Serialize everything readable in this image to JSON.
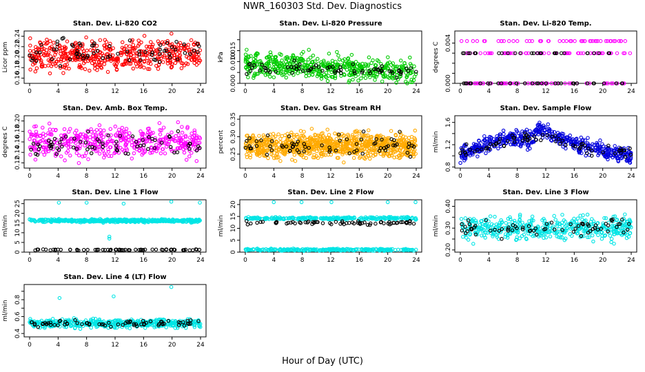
{
  "figure": {
    "title": "NWR_160303  Std. Dev. Diagnostics",
    "xlabel": "Hour of Day (UTC)"
  },
  "chart_data": [
    {
      "type": "scatter",
      "title": "Stan. Dev. Li-820 CO2",
      "ylabel": "Licor ppm",
      "xlim": [
        0,
        24
      ],
      "ylim": [
        0.15,
        0.25
      ],
      "xticks": [
        0,
        4,
        8,
        12,
        16,
        20,
        24
      ],
      "yticks": [
        0.16,
        0.18,
        0.2,
        0.22,
        0.24
      ],
      "ytick_labels": [
        "0.16",
        "0.18",
        "0.20",
        "0.22",
        "0.24"
      ],
      "series": [
        {
          "color": "#ff0000",
          "pattern": {
            "count": 520,
            "base": 0.205,
            "spread": 0.02,
            "min": 0.16,
            "max": 0.25
          }
        },
        {
          "color": "#000000",
          "pattern": {
            "count": 70,
            "base": 0.21,
            "spread": 0.015,
            "min": 0.17,
            "max": 0.24
          }
        }
      ]
    },
    {
      "type": "scatter",
      "title": "Stan. Dev. Li-820 Pressure",
      "ylabel": "kPa",
      "xlim": [
        0,
        24
      ],
      "ylim": [
        0,
        0.024
      ],
      "xticks": [
        0,
        4,
        8,
        12,
        16,
        20,
        24
      ],
      "yticks": [
        0,
        0.005,
        0.01,
        0.015,
        0.02
      ],
      "ytick_labels": [
        "0.000",
        "",
        "0.010",
        "0.015",
        ""
      ],
      "series": [
        {
          "color": "#00cc00",
          "pattern": {
            "count": 520,
            "base": 0.009,
            "trend": -0.004,
            "spread": 0.004,
            "min": 0.0,
            "max": 0.022
          }
        },
        {
          "color": "#000000",
          "pattern": {
            "count": 70,
            "base": 0.008,
            "trend": -0.003,
            "spread": 0.002,
            "min": 0.002,
            "max": 0.015
          }
        }
      ]
    },
    {
      "type": "scatter",
      "title": "Stan. Dev. Li-820 Temp.",
      "ylabel": "degrees C",
      "xlim": [
        0,
        24
      ],
      "ylim": [
        0,
        0.0052
      ],
      "xticks": [
        0,
        4,
        8,
        12,
        16,
        20,
        24
      ],
      "yticks": [
        0,
        0.001,
        0.002,
        0.003,
        0.004
      ],
      "ytick_labels": [
        "0.000",
        "",
        "",
        "",
        "0.004"
      ],
      "series": [
        {
          "color": "#ff00ff",
          "pattern": {
            "count": 160,
            "levels": [
              0.0,
              0.003,
              0.0042
            ],
            "min": 0,
            "max": 0.005
          }
        },
        {
          "color": "#000000",
          "pattern": {
            "count": 60,
            "levels": [
              0.0,
              0.003
            ],
            "min": 0,
            "max": 0.0046
          }
        }
      ]
    },
    {
      "type": "scatter",
      "title": "Stan. Dev. Amb. Box Temp.",
      "ylabel": "degrees C",
      "xlim": [
        0,
        24
      ],
      "ylim": [
        0.11,
        0.21
      ],
      "xticks": [
        0,
        4,
        8,
        12,
        16,
        20,
        24
      ],
      "yticks": [
        0.12,
        0.14,
        0.16,
        0.18,
        0.2
      ],
      "ytick_labels": [
        "0.12",
        "0.14",
        "0.16",
        "0.18",
        "0.20"
      ],
      "series": [
        {
          "color": "#ff00ff",
          "pattern": {
            "count": 460,
            "base": 0.16,
            "spread": 0.02,
            "min": 0.115,
            "max": 0.205
          }
        },
        {
          "color": "#000000",
          "pattern": {
            "count": 70,
            "base": 0.155,
            "spread": 0.015,
            "min": 0.12,
            "max": 0.2
          }
        }
      ]
    },
    {
      "type": "scatter",
      "title": "Stan. Dev. Gas Stream RH",
      "ylabel": "percent",
      "xlim": [
        0,
        24
      ],
      "ylim": [
        0.21,
        0.36
      ],
      "xticks": [
        0,
        4,
        8,
        12,
        16,
        20,
        24
      ],
      "yticks": [
        0.25,
        0.3,
        0.35
      ],
      "ytick_labels": [
        "0.25",
        "0.30",
        "0.35"
      ],
      "series": [
        {
          "color": "#ffaa00",
          "pattern": {
            "count": 900,
            "base": 0.275,
            "spread": 0.025,
            "min": 0.22,
            "max": 0.36
          }
        },
        {
          "color": "#000000",
          "pattern": {
            "count": 70,
            "base": 0.275,
            "spread": 0.02,
            "min": 0.24,
            "max": 0.33
          }
        }
      ]
    },
    {
      "type": "scatter",
      "title": "Stan. Dev. Sample Flow",
      "ylabel": "ml/min",
      "xlim": [
        0,
        24
      ],
      "ylim": [
        0.78,
        1.72
      ],
      "xticks": [
        0,
        4,
        8,
        12,
        16,
        20,
        24
      ],
      "yticks": [
        0.8,
        1.0,
        1.2,
        1.4,
        1.6
      ],
      "ytick_labels": [
        "0.8",
        "",
        "1.2",
        "",
        "1.6"
      ],
      "series": [
        {
          "color": "#0000dd",
          "pattern": {
            "count": 520,
            "hump": [
              [
                0,
                1.0
              ],
              [
                6,
                1.3
              ],
              [
                10,
                1.3
              ],
              [
                11,
                1.5
              ],
              [
                14,
                1.3
              ],
              [
                18,
                1.15
              ],
              [
                24,
                1.0
              ]
            ],
            "spread": 0.1,
            "min": 0.82,
            "max": 1.68
          }
        },
        {
          "color": "#000000",
          "pattern": {
            "count": 70,
            "hump": [
              [
                0,
                1.05
              ],
              [
                6,
                1.25
              ],
              [
                12,
                1.35
              ],
              [
                18,
                1.1
              ],
              [
                24,
                1.05
              ]
            ],
            "spread": 0.07,
            "min": 0.9,
            "max": 1.6
          }
        }
      ]
    },
    {
      "type": "scatter",
      "title": "Stan. Dev. Line 1 Flow",
      "ylabel": "ml/min",
      "xlim": [
        0,
        24
      ],
      "ylim": [
        0,
        27
      ],
      "xticks": [
        0,
        4,
        8,
        12,
        16,
        20,
        24
      ],
      "yticks": [
        0,
        5,
        10,
        15,
        20,
        25
      ],
      "ytick_labels": [
        "0",
        "5",
        "10",
        "15",
        "20",
        "25"
      ],
      "series": [
        {
          "color": "#00e5e5",
          "pattern": {
            "count": 460,
            "base": 16.2,
            "spread": 0.5,
            "min": 7,
            "max": 26,
            "outliers": [
              [
                4.1,
                25.5
              ],
              [
                8.0,
                25.5
              ],
              [
                11.2,
                8
              ],
              [
                11.2,
                7
              ],
              [
                13.2,
                25
              ],
              [
                19.9,
                26
              ],
              [
                23.9,
                25.5
              ]
            ]
          }
        },
        {
          "color": "#000000",
          "pattern": {
            "count": 70,
            "base": 1.2,
            "spread": 0.2,
            "min": 0.5,
            "max": 2
          }
        }
      ]
    },
    {
      "type": "scatter",
      "title": "Stan. Dev. Line 2 Flow",
      "ylabel": "ml/min",
      "xlim": [
        0,
        24
      ],
      "ylim": [
        0,
        22
      ],
      "xticks": [
        0,
        4,
        8,
        12,
        16,
        20,
        24
      ],
      "yticks": [
        0,
        5,
        10,
        15,
        20
      ],
      "ytick_labels": [
        "0",
        "5",
        "10",
        "15",
        "20"
      ],
      "series": [
        {
          "color": "#00e5e5",
          "pattern": {
            "count": 520,
            "bands": [
              [
                14.2,
                0.4
              ],
              [
                1.0,
                0.3
              ]
            ],
            "min": 0.5,
            "max": 21,
            "outliers": [
              [
                4.0,
                21
              ],
              [
                7.9,
                21
              ],
              [
                12.1,
                21
              ],
              [
                20.0,
                21
              ],
              [
                23.9,
                21
              ]
            ]
          }
        },
        {
          "color": "#000000",
          "pattern": {
            "count": 70,
            "base": 12.3,
            "spread": 0.5,
            "min": 9.5,
            "max": 14
          }
        }
      ]
    },
    {
      "type": "scatter",
      "title": "Stan. Dev. Line 3 Flow",
      "ylabel": "ml/min",
      "xlim": [
        0,
        24
      ],
      "ylim": [
        0.19,
        0.43
      ],
      "xticks": [
        0,
        4,
        8,
        12,
        16,
        20,
        24
      ],
      "yticks": [
        0.2,
        0.25,
        0.3,
        0.35,
        0.4
      ],
      "ytick_labels": [
        "0.20",
        "",
        "0.30",
        "",
        "0.40"
      ],
      "series": [
        {
          "color": "#00e5e5",
          "pattern": {
            "count": 460,
            "base": 0.3,
            "spread": 0.035,
            "min": 0.2,
            "max": 0.42
          }
        },
        {
          "color": "#000000",
          "pattern": {
            "count": 70,
            "base": 0.3,
            "spread": 0.025,
            "min": 0.22,
            "max": 0.38
          }
        }
      ]
    },
    {
      "type": "scatter",
      "title": "Stan. Dev. Line 4 (LT) Flow",
      "ylabel": "ml/min",
      "xlim": [
        0,
        24
      ],
      "ylim": [
        0.36,
        0.98
      ],
      "xticks": [
        0,
        4,
        8,
        12,
        16,
        20,
        24
      ],
      "yticks": [
        0.4,
        0.5,
        0.6,
        0.7,
        0.8,
        0.9
      ],
      "ytick_labels": [
        "0.4",
        "",
        "0.6",
        "",
        "0.8",
        ""
      ],
      "series": [
        {
          "color": "#00e5e5",
          "pattern": {
            "count": 460,
            "base": 0.52,
            "spread": 0.035,
            "min": 0.38,
            "max": 0.97,
            "outliers": [
              [
                4.2,
                0.82
              ],
              [
                11.8,
                0.84
              ],
              [
                19.9,
                0.95
              ]
            ]
          }
        },
        {
          "color": "#000000",
          "pattern": {
            "count": 70,
            "base": 0.52,
            "spread": 0.03,
            "min": 0.4,
            "max": 0.65
          }
        }
      ]
    }
  ]
}
